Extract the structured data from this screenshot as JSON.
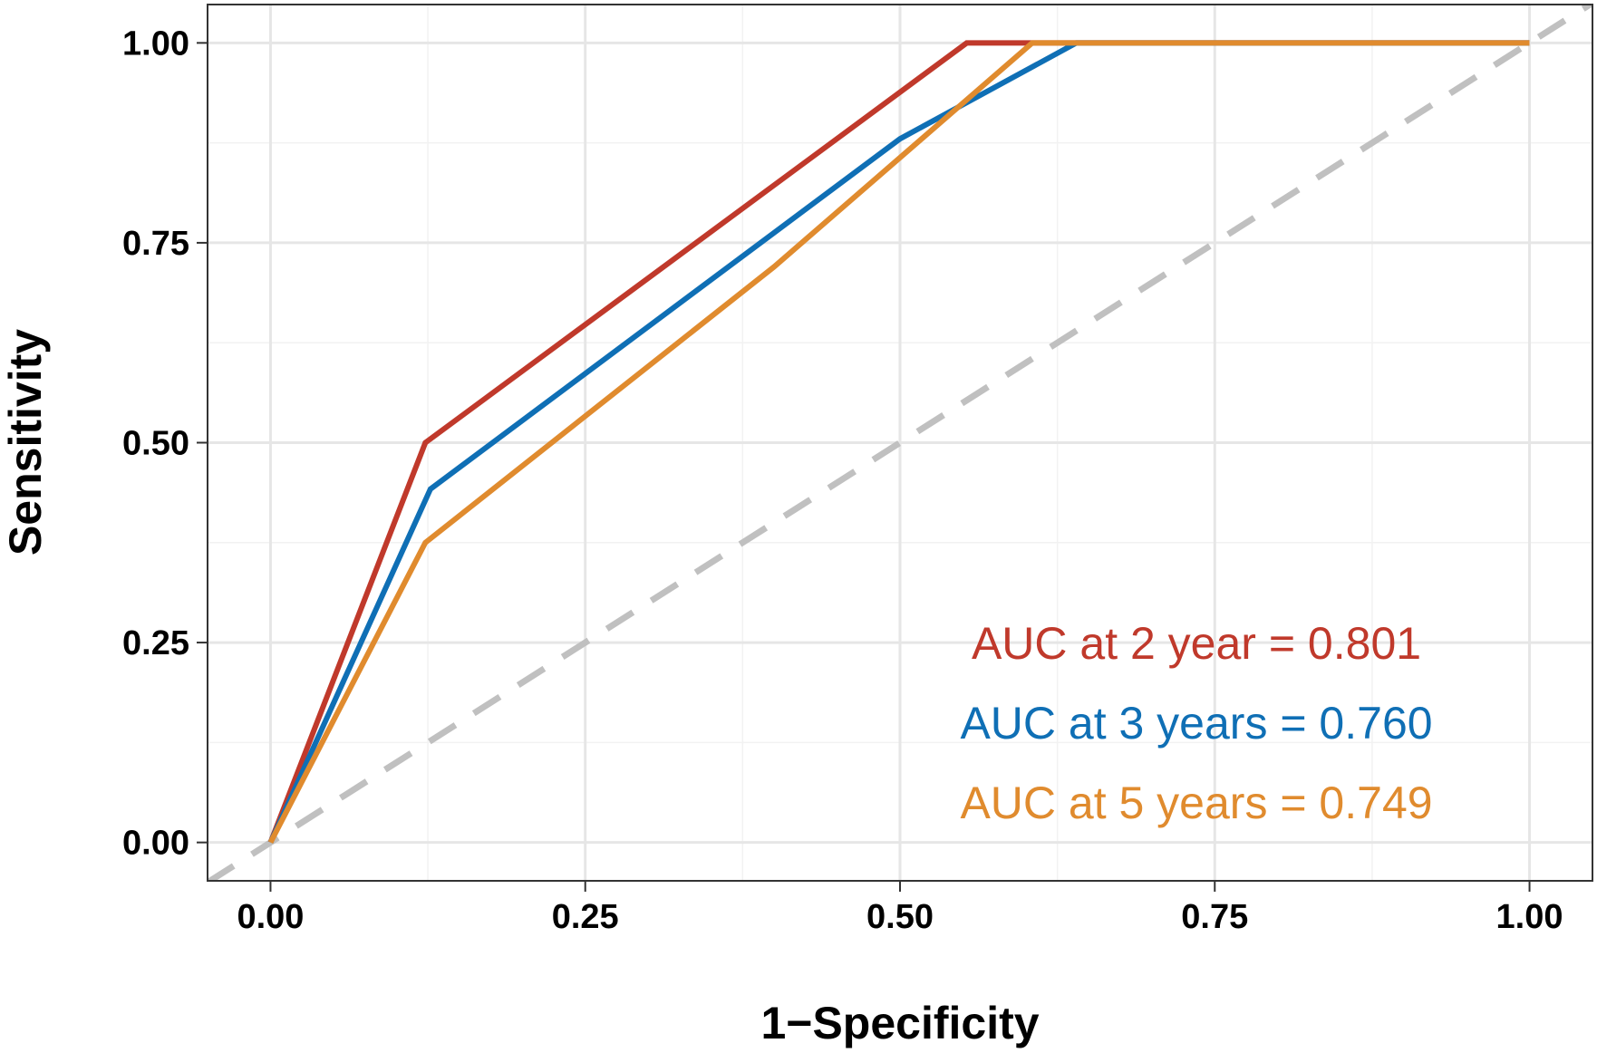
{
  "chart_data": {
    "type": "line",
    "title": "",
    "xlabel": "1−Specificity",
    "ylabel": "Sensitivity",
    "xlim": [
      -0.05,
      1.05
    ],
    "ylim": [
      -0.048,
      1.048
    ],
    "x_ticks": [
      "0.00",
      "0.25",
      "0.50",
      "0.75",
      "1.00"
    ],
    "y_ticks": [
      "0.00",
      "0.25",
      "0.50",
      "0.75",
      "1.00"
    ],
    "grid": true,
    "series": [
      {
        "name": "2 year",
        "color": "#c0392b",
        "x": [
          0,
          0.123,
          0.553,
          1.0
        ],
        "y": [
          0,
          0.5,
          1.0,
          1.0
        ]
      },
      {
        "name": "3 years",
        "color": "#0f6fb5",
        "x": [
          0,
          0.127,
          0.5,
          0.64,
          1.0
        ],
        "y": [
          0,
          0.442,
          0.88,
          1.0,
          1.0
        ]
      },
      {
        "name": "5 years",
        "color": "#e08b2e",
        "x": [
          0,
          0.123,
          0.4,
          0.605,
          1.0
        ],
        "y": [
          0,
          0.375,
          0.72,
          1.0,
          1.0
        ]
      }
    ],
    "reference_line": {
      "name": "chance diagonal",
      "color": "#c0c0c0",
      "x": [
        -0.05,
        1.05
      ],
      "y": [
        -0.05,
        1.05
      ]
    },
    "annotations": [
      {
        "text": "AUC at 2 year = 0.801",
        "color": "#c0392b"
      },
      {
        "text": "AUC at 3 years = 0.760",
        "color": "#0f6fb5"
      },
      {
        "text": "AUC at 5 years = 0.749",
        "color": "#e08b2e"
      }
    ]
  }
}
